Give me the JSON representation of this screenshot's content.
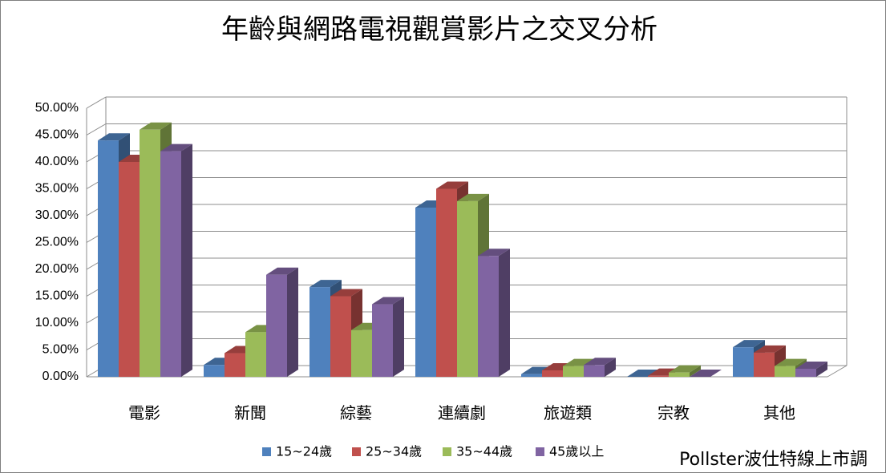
{
  "chart_data": {
    "type": "bar",
    "title": "年齡與網路電視觀賞影片之交叉分析",
    "categories": [
      "電影",
      "新聞",
      "綜藝",
      "連續劇",
      "旅遊類",
      "宗教",
      "其他"
    ],
    "series": [
      {
        "name": "15~24歲",
        "color": "#4f81bd",
        "values": [
          44.0,
          2.2,
          16.7,
          31.5,
          0.5,
          0.0,
          5.5
        ]
      },
      {
        "name": "25~34歲",
        "color": "#c0504d",
        "values": [
          40.0,
          4.4,
          15.0,
          35.0,
          1.2,
          0.2,
          4.5
        ]
      },
      {
        "name": "35~44歲",
        "color": "#9bbb59",
        "values": [
          46.0,
          8.3,
          8.7,
          32.7,
          2.0,
          0.8,
          2.0
        ]
      },
      {
        "name": "45歲以上",
        "color": "#8064a2",
        "values": [
          42.0,
          19.0,
          13.5,
          22.5,
          2.2,
          0.0,
          1.5
        ]
      }
    ],
    "ylim": [
      0,
      50
    ],
    "yticks": [
      "0.00%",
      "5.00%",
      "10.00%",
      "15.00%",
      "20.00%",
      "25.00%",
      "30.00%",
      "35.00%",
      "40.00%",
      "45.00%",
      "50.00%"
    ],
    "xlabel": "",
    "ylabel": "",
    "grid": true,
    "legend_position": "bottom",
    "style": "3d-clustered-column"
  },
  "source_label": "Pollster波仕特線上市調"
}
